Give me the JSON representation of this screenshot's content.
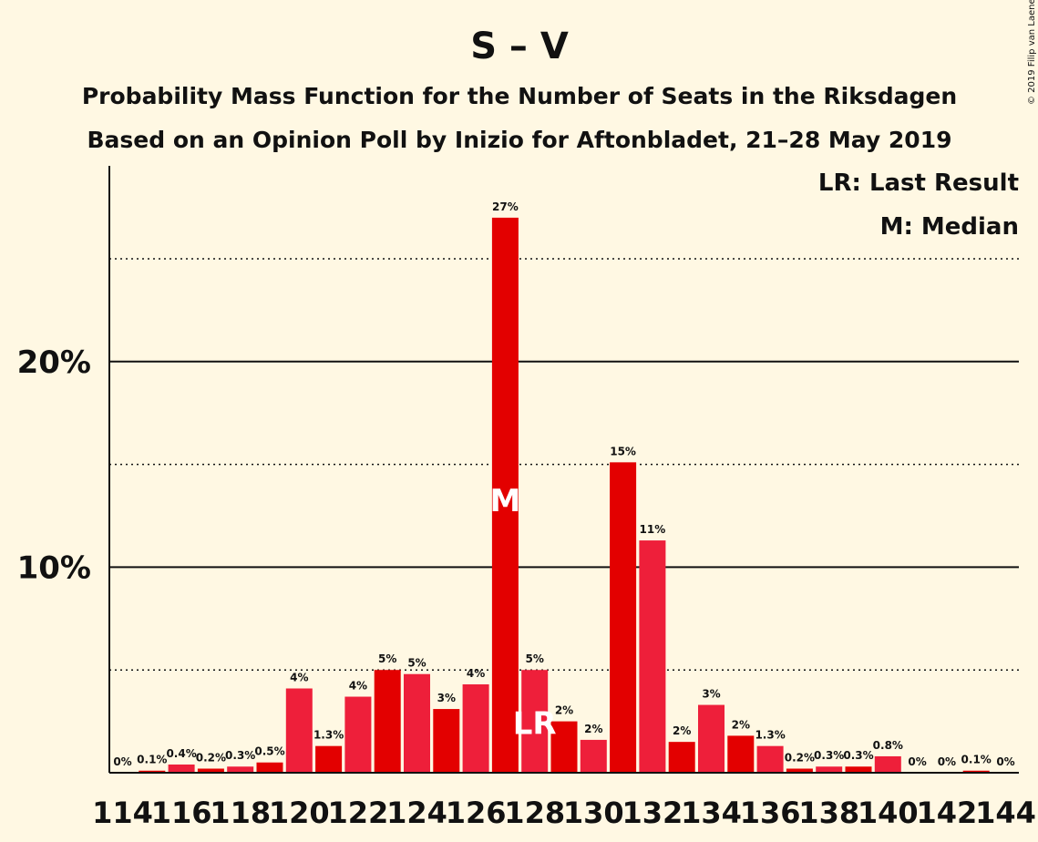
{
  "chart_data": {
    "type": "bar",
    "title": "S – V",
    "subtitle_1": "Probability Mass Function for the Number of Seats in the Riksdagen",
    "subtitle_2": "Based on an Opinion Poll by Inizio for Aftonbladet, 21–28 May 2019",
    "legend": [
      "LR: Last Result",
      "M: Median"
    ],
    "copyright": "© 2019 Filip van Laenen",
    "x": [
      114,
      115,
      116,
      117,
      118,
      119,
      120,
      121,
      122,
      123,
      124,
      125,
      126,
      127,
      128,
      129,
      130,
      131,
      132,
      133,
      134,
      135,
      136,
      137,
      138,
      139,
      140,
      141,
      142,
      143,
      144
    ],
    "values": [
      0,
      0.1,
      0.4,
      0.2,
      0.3,
      0.5,
      4.1,
      1.3,
      3.7,
      5.0,
      4.8,
      3.1,
      4.3,
      27.0,
      5.0,
      2.5,
      1.6,
      15.1,
      11.3,
      1.5,
      3.3,
      1.8,
      1.3,
      0.2,
      0.3,
      0.3,
      0.8,
      0,
      0,
      0.1,
      0
    ],
    "labels": [
      "0%",
      "0.1%",
      "0.4%",
      "0.2%",
      "0.3%",
      "0.5%",
      "4%",
      "1.3%",
      "4%",
      "5%",
      "5%",
      "3%",
      "4%",
      "27%",
      "5%",
      "2%",
      "2%",
      "15%",
      "11%",
      "2%",
      "3%",
      "2%",
      "1.3%",
      "0.2%",
      "0.3%",
      "0.3%",
      "0.8%",
      "0%",
      "0%",
      "0.1%",
      "0%"
    ],
    "x_tick_labels": [
      "114",
      "116",
      "118",
      "120",
      "122",
      "124",
      "126",
      "128",
      "130",
      "132",
      "134",
      "136",
      "138",
      "140",
      "142",
      "144"
    ],
    "y_tick_labels": [
      "10%",
      "20%"
    ],
    "y_solid_gridlines": [
      10,
      20
    ],
    "y_dotted_gridlines": [
      5,
      15,
      25
    ],
    "ylim": [
      0,
      29.5
    ],
    "median_seat": 127,
    "median_marker": "M",
    "last_result_seat": 128,
    "last_result_marker": "LR",
    "colors": {
      "primary": "#e30000",
      "alternate": "#ee1f3a",
      "background": "#fff8e3",
      "axis": "#111111"
    }
  }
}
